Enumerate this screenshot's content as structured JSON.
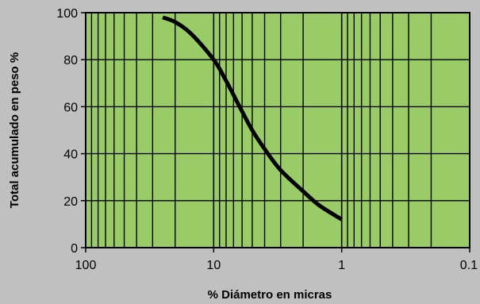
{
  "chart_data": {
    "type": "line",
    "title": "",
    "xlabel": "% Diámetro en micras",
    "ylabel": "Total acumulado en peso %",
    "x_scale": "log",
    "x_reversed": true,
    "xlim": [
      100,
      0.1
    ],
    "ylim": [
      0,
      100
    ],
    "x_ticks": [
      100,
      10,
      1,
      0.1
    ],
    "x_tick_labels": [
      "100",
      "10",
      "1",
      "0.1"
    ],
    "y_ticks": [
      0,
      20,
      40,
      60,
      80,
      100
    ],
    "y_tick_labels": [
      "0",
      "20",
      "40",
      "60",
      "80",
      "100"
    ],
    "grid": true,
    "legend": "none",
    "series": [
      {
        "x": [
          25,
          20,
          15,
          10,
          8,
          6,
          5,
          4,
          3,
          2,
          1.5,
          1
        ],
        "y": [
          98,
          96,
          91,
          80,
          71,
          58,
          50,
          42,
          33,
          24,
          18,
          12
        ]
      }
    ],
    "colors": {
      "background": "#c0c0c0",
      "plot_area": "#99cc66",
      "grid": "#000000",
      "line": "#000000"
    }
  }
}
